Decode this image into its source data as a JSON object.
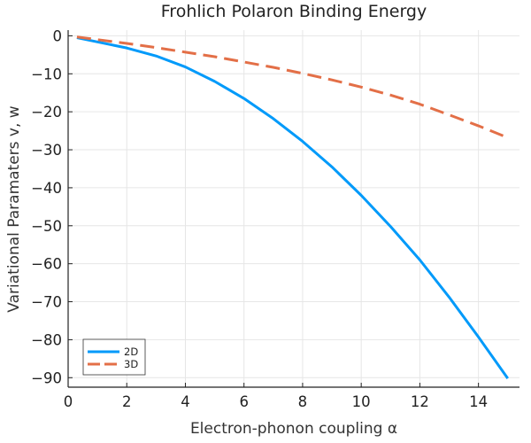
{
  "chart_data": {
    "type": "line",
    "title": "Frohlich Polaron Binding Energy",
    "xlabel": "Electron-phonon coupling α",
    "ylabel": "Variational Paramaters v, w",
    "xlim": [
      0,
      15.4
    ],
    "ylim": [
      -92.5,
      1.5
    ],
    "x_ticks": [
      0,
      2,
      4,
      6,
      8,
      10,
      12,
      14
    ],
    "y_ticks": [
      0,
      -10,
      -20,
      -30,
      -40,
      -50,
      -60,
      -70,
      -80,
      -90
    ],
    "x_tick_labels": [
      "0",
      "2",
      "4",
      "6",
      "8",
      "10",
      "12",
      "14"
    ],
    "y_tick_labels": [
      "0",
      "−10",
      "−20",
      "−30",
      "−40",
      "−50",
      "−60",
      "−70",
      "−80",
      "−90"
    ],
    "grid": true,
    "legend_position": "bottom-left",
    "series": [
      {
        "name": "2D",
        "color": "#009AFA",
        "style": "solid",
        "x": [
          0.3,
          1,
          2,
          3,
          4,
          5,
          6,
          7,
          8,
          9,
          10,
          11,
          12,
          13,
          14,
          15
        ],
        "y": [
          -0.5,
          -1.6,
          -3.2,
          -5.3,
          -8.2,
          -12.0,
          -16.5,
          -21.8,
          -27.8,
          -34.5,
          -42.0,
          -50.2,
          -59.0,
          -68.8,
          -79.3,
          -90.2
        ]
      },
      {
        "name": "3D",
        "color": "#E36F47",
        "style": "dashed",
        "x": [
          0.3,
          1,
          2,
          3,
          4,
          5,
          6,
          7,
          8,
          9,
          10,
          11,
          12,
          13,
          14,
          15
        ],
        "y": [
          -0.3,
          -1.0,
          -2.0,
          -3.1,
          -4.3,
          -5.5,
          -6.9,
          -8.3,
          -9.9,
          -11.6,
          -13.5,
          -15.6,
          -18.0,
          -20.8,
          -23.7,
          -26.8
        ]
      }
    ]
  }
}
